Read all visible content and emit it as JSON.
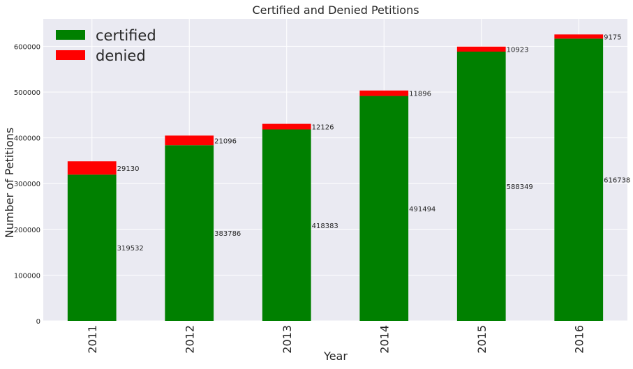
{
  "chart_data": {
    "type": "bar",
    "stacked": true,
    "title": "Certified and Denied Petitions",
    "xlabel": "Year",
    "ylabel": "Number of Petitions",
    "categories": [
      "2011",
      "2012",
      "2013",
      "2014",
      "2015",
      "2016"
    ],
    "series": [
      {
        "name": "certified",
        "color": "#008000",
        "values": [
          319532,
          383786,
          418383,
          491494,
          588349,
          616738
        ]
      },
      {
        "name": "denied",
        "color": "#ff0000",
        "values": [
          29130,
          21096,
          12126,
          11896,
          10923,
          9175
        ]
      }
    ],
    "ylim": [
      0,
      660000
    ],
    "yticks": [
      0,
      100000,
      200000,
      300000,
      400000,
      500000,
      600000
    ],
    "grid": true,
    "background": "#eaeaf2",
    "legend_position": "top-left"
  }
}
